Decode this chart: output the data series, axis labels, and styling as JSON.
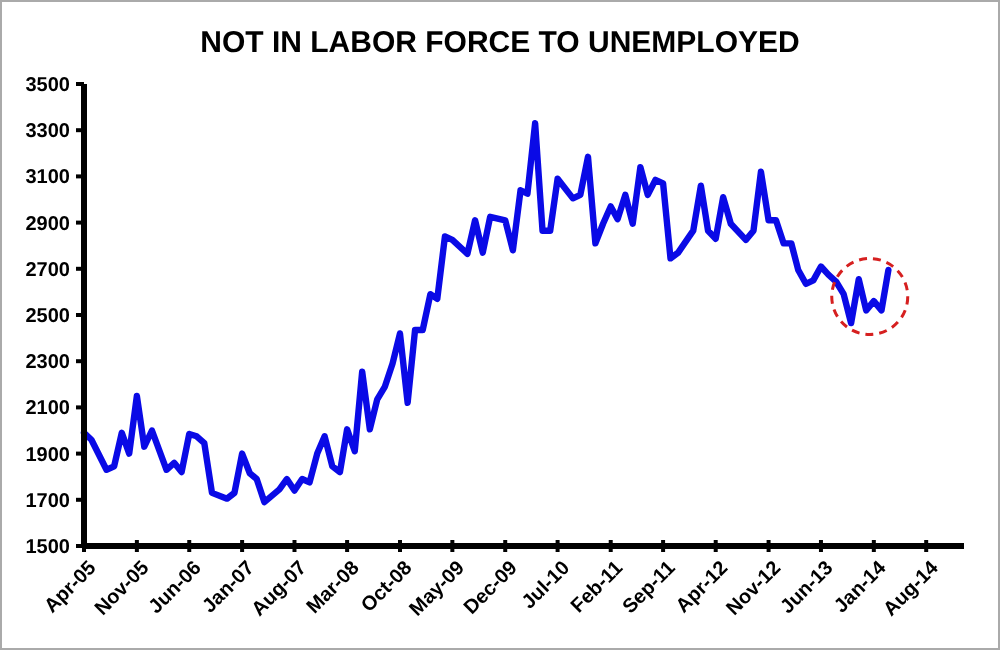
{
  "chart_data": {
    "type": "line",
    "title": "NOT IN LABOR FORCE TO UNEMPLOYED",
    "x": [
      "2005-04",
      "2005-05",
      "2005-07",
      "2005-08",
      "2005-09",
      "2005-10",
      "2005-11",
      "2005-12",
      "2006-01",
      "2006-03",
      "2006-04",
      "2006-05",
      "2006-06",
      "2006-07",
      "2006-08",
      "2006-09",
      "2006-11",
      "2006-12",
      "2007-01",
      "2007-02",
      "2007-03",
      "2007-04",
      "2007-06",
      "2007-07",
      "2007-08",
      "2007-09",
      "2007-10",
      "2007-11",
      "2007-12",
      "2008-01",
      "2008-02",
      "2008-03",
      "2008-04",
      "2008-05",
      "2008-06",
      "2008-07",
      "2008-08",
      "2008-09",
      "2008-10",
      "2008-11",
      "2008-12",
      "2009-01",
      "2009-02",
      "2009-03",
      "2009-04",
      "2009-05",
      "2009-07",
      "2009-08",
      "2009-09",
      "2009-10",
      "2009-12",
      "2010-01",
      "2010-02",
      "2010-03",
      "2010-04",
      "2010-05",
      "2010-06",
      "2010-07",
      "2010-09",
      "2010-10",
      "2010-11",
      "2010-12",
      "2011-01",
      "2011-02",
      "2011-03",
      "2011-04",
      "2011-05",
      "2011-06",
      "2011-07",
      "2011-08",
      "2011-09",
      "2011-10",
      "2011-11",
      "2012-01",
      "2012-02",
      "2012-03",
      "2012-04",
      "2012-05",
      "2012-06",
      "2012-08",
      "2012-09",
      "2012-10",
      "2012-11",
      "2012-12",
      "2013-01",
      "2013-02",
      "2013-03",
      "2013-04",
      "2013-05",
      "2013-06",
      "2013-07",
      "2013-08",
      "2013-09",
      "2013-10",
      "2013-11",
      "2013-12",
      "2014-01",
      "2014-02",
      "2014-03"
    ],
    "series": [
      {
        "color": "#0a0ae6",
        "values": [
          1990,
          1960,
          1830,
          1845,
          1990,
          1900,
          2150,
          1930,
          2000,
          1830,
          1860,
          1820,
          1985,
          1975,
          1945,
          1730,
          1705,
          1730,
          1900,
          1815,
          1790,
          1690,
          1745,
          1790,
          1740,
          1790,
          1775,
          1900,
          1975,
          1845,
          1820,
          2005,
          1910,
          2255,
          2005,
          2135,
          2190,
          2290,
          2420,
          2120,
          2435,
          2435,
          2590,
          2570,
          2840,
          2825,
          2765,
          2910,
          2770,
          2925,
          2910,
          2780,
          3040,
          3025,
          3330,
          2865,
          2865,
          3090,
          3005,
          3020,
          3185,
          2810,
          2895,
          2970,
          2915,
          3020,
          2895,
          3140,
          3020,
          3085,
          3070,
          2745,
          2770,
          2865,
          3060,
          2865,
          2830,
          3010,
          2895,
          2825,
          2865,
          3120,
          2910,
          2910,
          2810,
          2810,
          2695,
          2635,
          2650,
          2710,
          2675,
          2645,
          2590,
          2465,
          2655,
          2520,
          2560,
          2520,
          2695
        ]
      }
    ],
    "xlim": [
      "2005-04",
      "2015-01"
    ],
    "xticks": [
      {
        "value": "2005-04",
        "label": "Apr-05"
      },
      {
        "value": "2005-11",
        "label": "Nov-05"
      },
      {
        "value": "2006-06",
        "label": "Jun-06"
      },
      {
        "value": "2007-01",
        "label": "Jan-07"
      },
      {
        "value": "2007-08",
        "label": "Aug-07"
      },
      {
        "value": "2008-03",
        "label": "Mar-08"
      },
      {
        "value": "2008-10",
        "label": "Oct-08"
      },
      {
        "value": "2009-05",
        "label": "May-09"
      },
      {
        "value": "2009-12",
        "label": "Dec-09"
      },
      {
        "value": "2010-07",
        "label": "Jul-10"
      },
      {
        "value": "2011-02",
        "label": "Feb-11"
      },
      {
        "value": "2011-09",
        "label": "Sep-11"
      },
      {
        "value": "2012-04",
        "label": "Apr-12"
      },
      {
        "value": "2012-11",
        "label": "Nov-12"
      },
      {
        "value": "2013-06",
        "label": "Jun-13"
      },
      {
        "value": "2014-01",
        "label": "Jan-14"
      },
      {
        "value": "2014-08",
        "label": "Aug-14"
      }
    ],
    "ylim": [
      1500,
      3500
    ],
    "yticks": [
      1500,
      1700,
      1900,
      2100,
      2300,
      2500,
      2700,
      2900,
      3100,
      3300,
      3500
    ],
    "grid": false,
    "marker": "none",
    "line_style": "solid"
  }
}
